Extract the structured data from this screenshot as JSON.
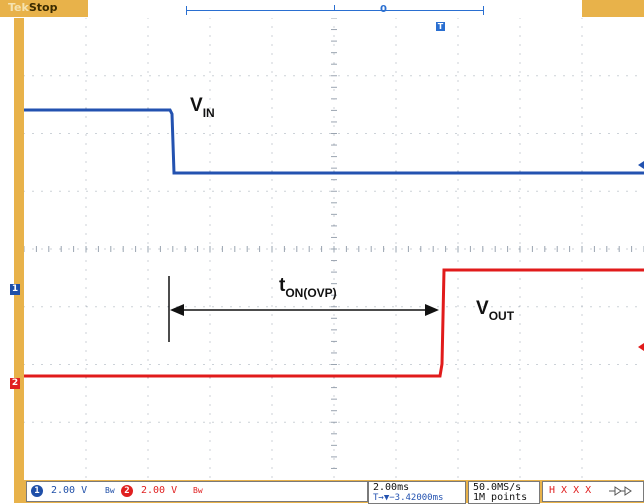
{
  "status": {
    "brand": "Tek",
    "run_state": "Stop"
  },
  "horizontal_position_marker": "0",
  "trigger_icon": "T",
  "channel_markers": [
    "1",
    "2"
  ],
  "annotations": {
    "vin_main": "V",
    "vin_sub": "IN",
    "ton_main": "t",
    "ton_sub": "ON(OVP)",
    "vout_main": "V",
    "vout_sub": "OUT"
  },
  "bottom": {
    "ch1": {
      "num": "1",
      "scale": "2.00 V",
      "bw": "Bw",
      "color": "#1f4fa8"
    },
    "ch2": {
      "num": "2",
      "scale": "2.00 V",
      "bw": "Bw",
      "color": "#e02020"
    },
    "timebase": "2.00ms",
    "trigger_delay": "T→▼−3.42000ms",
    "sample_rate": "50.0MS/s",
    "record_length": "1M points",
    "trigger_readout": "H X X X"
  },
  "colors": {
    "ch1_trace": "#2352b0",
    "ch2_trace": "#e11b1b",
    "frame": "#e8b24a",
    "grid": "#9aa4b0"
  }
}
